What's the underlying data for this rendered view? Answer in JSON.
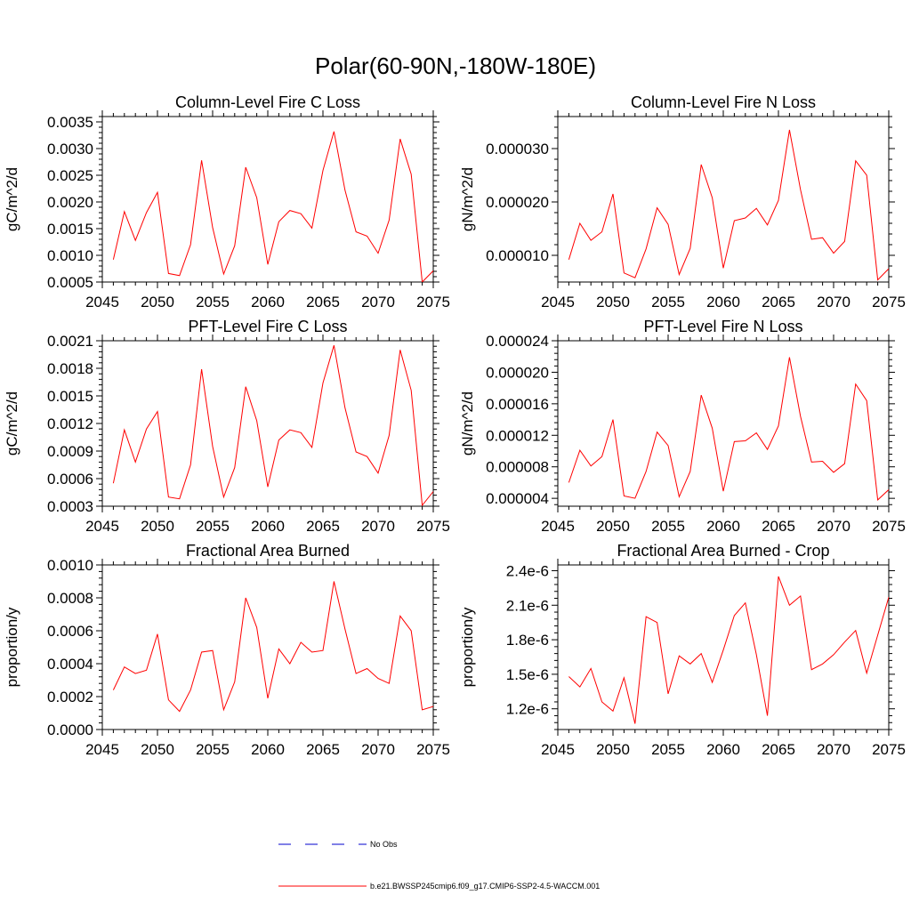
{
  "main_title": "Polar(60-90N,-180W-180E)",
  "colors": {
    "series": "#ff0000",
    "no_obs": "#0000cc",
    "axis": "#000000"
  },
  "legend": {
    "no_obs_label": "No Obs",
    "case_label": "b.e21.BWSSP245cmip6.f09_g17.CMIP6-SSP2-4.5-WACCM.001"
  },
  "chart_data": [
    {
      "type": "line",
      "title": "Column-Level Fire C Loss",
      "ylabel": "gC/m^2/d",
      "xlim": [
        2045,
        2075
      ],
      "ylim": [
        0.0005,
        0.0036
      ],
      "xticks": [
        2045,
        2050,
        2055,
        2060,
        2065,
        2070,
        2075
      ],
      "xtick_labels": [
        "2045",
        "2050",
        "2055",
        "2060",
        "2065",
        "2070",
        "2075"
      ],
      "yticks": [
        0.0005,
        0.001,
        0.0015,
        0.002,
        0.0025,
        0.003,
        0.0035
      ],
      "ytick_labels": [
        "0.0005",
        "0.0010",
        "0.0015",
        "0.0020",
        "0.0025",
        "0.0030",
        "0.0035"
      ],
      "x": [
        2046,
        2047,
        2048,
        2049,
        2050,
        2051,
        2052,
        2053,
        2054,
        2055,
        2056,
        2057,
        2058,
        2059,
        2060,
        2061,
        2062,
        2063,
        2064,
        2065,
        2066,
        2067,
        2068,
        2069,
        2070,
        2071,
        2072,
        2073,
        2074,
        2075
      ],
      "values": [
        0.00092,
        0.00182,
        0.00128,
        0.0018,
        0.00218,
        0.00066,
        0.00062,
        0.0012,
        0.00278,
        0.00152,
        0.00065,
        0.00118,
        0.00265,
        0.00208,
        0.00083,
        0.00163,
        0.00184,
        0.00178,
        0.00151,
        0.00259,
        0.00332,
        0.00222,
        0.00144,
        0.00136,
        0.00104,
        0.00166,
        0.00318,
        0.00252,
        0.0005,
        0.00071
      ]
    },
    {
      "type": "line",
      "title": "Column-Level Fire N Loss",
      "ylabel": "gN/m^2/d",
      "xlim": [
        2045,
        2075
      ],
      "ylim": [
        5e-06,
        3.6e-05
      ],
      "xticks": [
        2045,
        2050,
        2055,
        2060,
        2065,
        2070,
        2075
      ],
      "xtick_labels": [
        "2045",
        "2050",
        "2055",
        "2060",
        "2065",
        "2070",
        "2075"
      ],
      "yticks": [
        1e-05,
        2e-05,
        3e-05
      ],
      "ytick_labels": [
        "0.000010",
        "0.000020",
        "0.000030"
      ],
      "x": [
        2046,
        2047,
        2048,
        2049,
        2050,
        2051,
        2052,
        2053,
        2054,
        2055,
        2056,
        2057,
        2058,
        2059,
        2060,
        2061,
        2062,
        2063,
        2064,
        2065,
        2066,
        2067,
        2068,
        2069,
        2070,
        2071,
        2072,
        2073,
        2074,
        2075
      ],
      "values": [
        9.2e-06,
        1.6e-05,
        1.28e-05,
        1.44e-05,
        2.15e-05,
        6.7e-06,
        5.8e-06,
        1.12e-05,
        1.89e-05,
        1.58e-05,
        6.4e-06,
        1.13e-05,
        2.7e-05,
        2.08e-05,
        7.6e-06,
        1.65e-05,
        1.7e-05,
        1.88e-05,
        1.57e-05,
        2.03e-05,
        3.35e-05,
        2.23e-05,
        1.3e-05,
        1.33e-05,
        1.04e-05,
        1.26e-05,
        2.77e-05,
        2.5e-05,
        5.4e-06,
        7.5e-06
      ]
    },
    {
      "type": "line",
      "title": "PFT-Level Fire C Loss",
      "ylabel": "gC/m^2/d",
      "xlim": [
        2045,
        2075
      ],
      "ylim": [
        0.0003,
        0.0021
      ],
      "xticks": [
        2045,
        2050,
        2055,
        2060,
        2065,
        2070,
        2075
      ],
      "xtick_labels": [
        "2045",
        "2050",
        "2055",
        "2060",
        "2065",
        "2070",
        "2075"
      ],
      "yticks": [
        0.0003,
        0.0006,
        0.0009,
        0.0012,
        0.0015,
        0.0018,
        0.0021
      ],
      "ytick_labels": [
        "0.0003",
        "0.0006",
        "0.0009",
        "0.0012",
        "0.0015",
        "0.0018",
        "0.0021"
      ],
      "x": [
        2046,
        2047,
        2048,
        2049,
        2050,
        2051,
        2052,
        2053,
        2054,
        2055,
        2056,
        2057,
        2058,
        2059,
        2060,
        2061,
        2062,
        2063,
        2064,
        2065,
        2066,
        2067,
        2068,
        2069,
        2070,
        2071,
        2072,
        2073,
        2074,
        2075
      ],
      "values": [
        0.00055,
        0.00113,
        0.00078,
        0.00114,
        0.00133,
        0.0004,
        0.00038,
        0.00075,
        0.00179,
        0.00095,
        0.0004,
        0.00072,
        0.0016,
        0.00123,
        0.00051,
        0.00102,
        0.00113,
        0.0011,
        0.00094,
        0.00164,
        0.00205,
        0.00137,
        0.00089,
        0.00084,
        0.00066,
        0.00107,
        0.002,
        0.00156,
        0.00031,
        0.00046
      ]
    },
    {
      "type": "line",
      "title": "PFT-Level Fire N Loss",
      "ylabel": "gN/m^2/d",
      "xlim": [
        2045,
        2075
      ],
      "ylim": [
        3e-06,
        2.4e-05
      ],
      "xticks": [
        2045,
        2050,
        2055,
        2060,
        2065,
        2070,
        2075
      ],
      "xtick_labels": [
        "2045",
        "2050",
        "2055",
        "2060",
        "2065",
        "2070",
        "2075"
      ],
      "yticks": [
        4e-06,
        8e-06,
        1.2e-05,
        1.6e-05,
        2e-05,
        2.4e-05
      ],
      "ytick_labels": [
        "0.000004",
        "0.000008",
        "0.000012",
        "0.000016",
        "0.000020",
        "0.000024"
      ],
      "x": [
        2046,
        2047,
        2048,
        2049,
        2050,
        2051,
        2052,
        2053,
        2054,
        2055,
        2056,
        2057,
        2058,
        2059,
        2060,
        2061,
        2062,
        2063,
        2064,
        2065,
        2066,
        2067,
        2068,
        2069,
        2070,
        2071,
        2072,
        2073,
        2074,
        2075
      ],
      "values": [
        6e-06,
        1.01e-05,
        8.1e-06,
        9.3e-06,
        1.4e-05,
        4.3e-06,
        4e-06,
        7.4e-06,
        1.24e-05,
        1.07e-05,
        4.2e-06,
        7.4e-06,
        1.71e-05,
        1.29e-05,
        4.9e-06,
        1.12e-05,
        1.13e-05,
        1.23e-05,
        1.02e-05,
        1.32e-05,
        2.19e-05,
        1.44e-05,
        8.6e-06,
        8.7e-06,
        7.3e-06,
        8.4e-06,
        1.85e-05,
        1.64e-05,
        3.8e-06,
        5.1e-06
      ]
    },
    {
      "type": "line",
      "title": "Fractional Area Burned",
      "ylabel": "proportion/y",
      "xlim": [
        2045,
        2075
      ],
      "ylim": [
        0,
        0.001
      ],
      "xticks": [
        2045,
        2050,
        2055,
        2060,
        2065,
        2070,
        2075
      ],
      "xtick_labels": [
        "2045",
        "2050",
        "2055",
        "2060",
        "2065",
        "2070",
        "2075"
      ],
      "yticks": [
        0,
        0.0002,
        0.0004,
        0.0006,
        0.0008,
        0.001
      ],
      "ytick_labels": [
        "0.0000",
        "0.0002",
        "0.0004",
        "0.0006",
        "0.0008",
        "0.0010"
      ],
      "x": [
        2046,
        2047,
        2048,
        2049,
        2050,
        2051,
        2052,
        2053,
        2054,
        2055,
        2056,
        2057,
        2058,
        2059,
        2060,
        2061,
        2062,
        2063,
        2064,
        2065,
        2066,
        2067,
        2068,
        2069,
        2070,
        2071,
        2072,
        2073,
        2074,
        2075
      ],
      "values": [
        0.00024,
        0.00038,
        0.00034,
        0.00036,
        0.00058,
        0.00018,
        0.00011,
        0.00024,
        0.00047,
        0.00048,
        0.00012,
        0.00029,
        0.0008,
        0.00062,
        0.00019,
        0.00049,
        0.0004,
        0.00053,
        0.00047,
        0.00048,
        0.0009,
        0.00061,
        0.00034,
        0.00037,
        0.00031,
        0.00028,
        0.00069,
        0.0006,
        0.00012,
        0.00014
      ]
    },
    {
      "type": "line",
      "title": "Fractional Area Burned - Crop",
      "ylabel": "proportion/y",
      "xlim": [
        2045,
        2075
      ],
      "ylim": [
        1.02e-06,
        2.45e-06
      ],
      "xticks": [
        2045,
        2050,
        2055,
        2060,
        2065,
        2070,
        2075
      ],
      "xtick_labels": [
        "2045",
        "2050",
        "2055",
        "2060",
        "2065",
        "2070",
        "2075"
      ],
      "yticks": [
        1.2e-06,
        1.5e-06,
        1.8e-06,
        2.1e-06,
        2.4e-06
      ],
      "ytick_labels": [
        "1.2e-6",
        "1.5e-6",
        "1.8e-6",
        "2.1e-6",
        "2.4e-6"
      ],
      "x": [
        2046,
        2047,
        2048,
        2049,
        2050,
        2051,
        2052,
        2053,
        2054,
        2055,
        2056,
        2057,
        2058,
        2059,
        2060,
        2061,
        2062,
        2063,
        2064,
        2065,
        2066,
        2067,
        2068,
        2069,
        2070,
        2071,
        2072,
        2073,
        2074,
        2075
      ],
      "values": [
        1.48e-06,
        1.39e-06,
        1.55e-06,
        1.26e-06,
        1.18e-06,
        1.47e-06,
        1.07e-06,
        2e-06,
        1.95e-06,
        1.33e-06,
        1.66e-06,
        1.59e-06,
        1.68e-06,
        1.43e-06,
        1.71e-06,
        2.01e-06,
        2.12e-06,
        1.67e-06,
        1.14e-06,
        2.35e-06,
        2.1e-06,
        2.18e-06,
        1.54e-06,
        1.59e-06,
        1.67e-06,
        1.78e-06,
        1.88e-06,
        1.51e-06,
        1.84e-06,
        2.17e-06
      ]
    }
  ]
}
